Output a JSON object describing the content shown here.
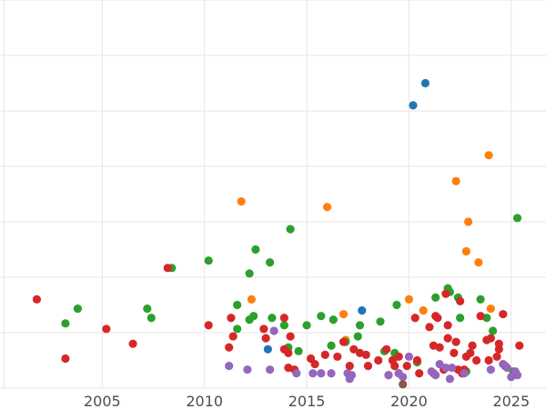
{
  "chart_data": {
    "type": "scatter",
    "title": "",
    "xlabel": "",
    "ylabel": "",
    "xlim": [
      2000.0,
      2026.7
    ],
    "ylim": [
      0,
      210
    ],
    "x_ticks": [
      2005,
      2010,
      2015,
      2020,
      2025
    ],
    "x_tick_labels": [
      "2005",
      "2010",
      "2015",
      "2020",
      "2025"
    ],
    "y_gridlines": [
      0,
      30,
      60,
      90,
      120,
      150,
      180,
      210
    ],
    "grid": true,
    "legend": "none",
    "series": [
      {
        "color": "#1f77b4",
        "points": [
          [
            2020.2,
            153
          ],
          [
            2020.8,
            165
          ],
          [
            2017.7,
            42
          ],
          [
            2013.1,
            21
          ]
        ]
      },
      {
        "color": "#ff7f0e",
        "points": [
          [
            2011.8,
            101
          ],
          [
            2016.0,
            98
          ],
          [
            2012.3,
            48
          ],
          [
            2016.8,
            40
          ],
          [
            2016.9,
            26
          ],
          [
            2020.0,
            48
          ],
          [
            2020.7,
            42
          ],
          [
            2022.3,
            112
          ],
          [
            2022.9,
            90
          ],
          [
            2023.4,
            68
          ],
          [
            2022.8,
            74
          ],
          [
            2023.9,
            126
          ],
          [
            2024.0,
            43
          ]
        ]
      },
      {
        "color": "#2ca02c",
        "points": [
          [
            2003.2,
            35
          ],
          [
            2003.8,
            43
          ],
          [
            2007.2,
            43
          ],
          [
            2007.4,
            38
          ],
          [
            2008.4,
            65
          ],
          [
            2010.2,
            69
          ],
          [
            2011.6,
            45
          ],
          [
            2011.6,
            32
          ],
          [
            2012.2,
            37
          ],
          [
            2012.4,
            39
          ],
          [
            2012.2,
            62
          ],
          [
            2012.5,
            75
          ],
          [
            2013.2,
            68
          ],
          [
            2013.3,
            38
          ],
          [
            2013.9,
            34
          ],
          [
            2014.1,
            22
          ],
          [
            2014.2,
            86
          ],
          [
            2014.6,
            20
          ],
          [
            2015.0,
            34
          ],
          [
            2015.7,
            39
          ],
          [
            2016.2,
            23
          ],
          [
            2016.3,
            37
          ],
          [
            2016.9,
            25
          ],
          [
            2017.5,
            28
          ],
          [
            2017.6,
            34
          ],
          [
            2018.6,
            36
          ],
          [
            2018.8,
            20
          ],
          [
            2019.3,
            19
          ],
          [
            2019.4,
            45
          ],
          [
            2019.2,
            15
          ],
          [
            2021.3,
            49
          ],
          [
            2021.9,
            54
          ],
          [
            2022.0,
            52
          ],
          [
            2022.4,
            49
          ],
          [
            2022.5,
            38
          ],
          [
            2023.5,
            48
          ],
          [
            2023.8,
            38
          ],
          [
            2024.1,
            31
          ],
          [
            2025.1,
            9
          ],
          [
            2025.3,
            92
          ],
          [
            2022.8,
            9
          ],
          [
            2020.4,
            14
          ]
        ]
      },
      {
        "color": "#d62728",
        "points": [
          [
            2001.8,
            48
          ],
          [
            2003.2,
            16
          ],
          [
            2005.2,
            32
          ],
          [
            2006.5,
            24
          ],
          [
            2008.2,
            65
          ],
          [
            2010.2,
            34
          ],
          [
            2011.2,
            22
          ],
          [
            2011.3,
            38
          ],
          [
            2011.4,
            28
          ],
          [
            2012.9,
            32
          ],
          [
            2013.0,
            27
          ],
          [
            2013.9,
            38
          ],
          [
            2013.9,
            21
          ],
          [
            2014.1,
            19
          ],
          [
            2014.1,
            11
          ],
          [
            2014.2,
            28
          ],
          [
            2014.4,
            10
          ],
          [
            2015.2,
            16
          ],
          [
            2015.4,
            13
          ],
          [
            2015.9,
            18
          ],
          [
            2016.5,
            17
          ],
          [
            2016.8,
            25
          ],
          [
            2017.1,
            12
          ],
          [
            2017.3,
            21
          ],
          [
            2017.6,
            19
          ],
          [
            2017.9,
            18
          ],
          [
            2018.0,
            12
          ],
          [
            2018.5,
            15
          ],
          [
            2018.9,
            21
          ],
          [
            2019.0,
            7
          ],
          [
            2019.2,
            15
          ],
          [
            2019.3,
            12
          ],
          [
            2019.5,
            17
          ],
          [
            2019.9,
            12
          ],
          [
            2020.3,
            38
          ],
          [
            2020.4,
            15
          ],
          [
            2020.5,
            8
          ],
          [
            2021.0,
            33
          ],
          [
            2021.2,
            23
          ],
          [
            2021.3,
            39
          ],
          [
            2021.4,
            38
          ],
          [
            2021.5,
            22
          ],
          [
            2021.7,
            10
          ],
          [
            2021.8,
            51
          ],
          [
            2021.9,
            34
          ],
          [
            2021.9,
            27
          ],
          [
            2022.2,
            19
          ],
          [
            2022.3,
            25
          ],
          [
            2022.4,
            10
          ],
          [
            2022.5,
            47
          ],
          [
            2022.6,
            8
          ],
          [
            2022.7,
            10
          ],
          [
            2022.8,
            17
          ],
          [
            2023.0,
            19
          ],
          [
            2023.1,
            23
          ],
          [
            2023.3,
            15
          ],
          [
            2023.5,
            39
          ],
          [
            2023.8,
            26
          ],
          [
            2023.9,
            15
          ],
          [
            2024.0,
            27
          ],
          [
            2024.3,
            17
          ],
          [
            2024.4,
            21
          ],
          [
            2024.4,
            24
          ],
          [
            2024.6,
            40
          ],
          [
            2024.7,
            12
          ],
          [
            2025.4,
            23
          ],
          [
            2019.5,
            8
          ],
          [
            2021.2,
            8
          ]
        ]
      },
      {
        "color": "#9467bd",
        "points": [
          [
            2011.2,
            12
          ],
          [
            2012.1,
            10
          ],
          [
            2013.2,
            10
          ],
          [
            2013.4,
            31
          ],
          [
            2014.5,
            8
          ],
          [
            2015.3,
            8
          ],
          [
            2015.7,
            8
          ],
          [
            2016.2,
            8
          ],
          [
            2017.0,
            8
          ],
          [
            2017.2,
            7
          ],
          [
            2017.1,
            5
          ],
          [
            2019.0,
            7
          ],
          [
            2019.5,
            8
          ],
          [
            2019.7,
            6
          ],
          [
            2020.0,
            17
          ],
          [
            2021.1,
            9
          ],
          [
            2021.3,
            7
          ],
          [
            2021.5,
            13
          ],
          [
            2021.8,
            11
          ],
          [
            2022.0,
            5
          ],
          [
            2022.1,
            11
          ],
          [
            2022.7,
            8
          ],
          [
            2024.0,
            10
          ],
          [
            2024.6,
            13
          ],
          [
            2024.8,
            11
          ],
          [
            2025.0,
            6
          ],
          [
            2025.2,
            9
          ],
          [
            2025.3,
            7
          ]
        ]
      },
      {
        "color": "#8c564b",
        "points": [
          [
            2019.7,
            2
          ]
        ]
      }
    ]
  }
}
